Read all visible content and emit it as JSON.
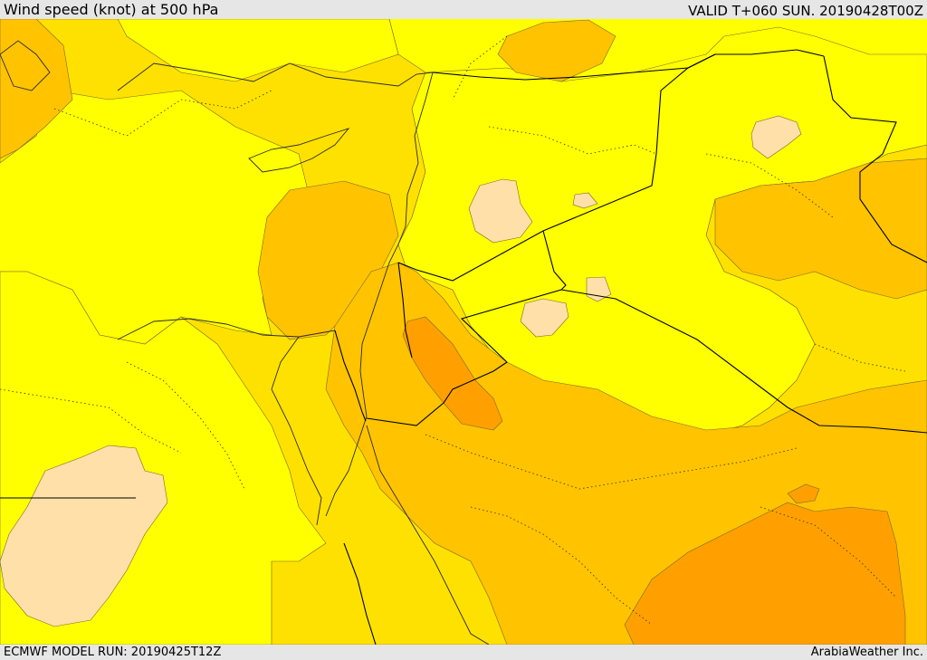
{
  "header": {
    "title": "Wind speed (knot) at 500 hPa",
    "valid": "VALID T+060 SUN. 20190428T00Z"
  },
  "footer": {
    "model_run": "ECMWF MODEL RUN: 20190425T12Z",
    "credit": "ArabiaWeather Inc."
  },
  "map": {
    "variable": "wind speed",
    "level": "500 hPa",
    "fill_colors": {
      "lowest": "#ffe0a8",
      "low": "#ffff00",
      "medium": "#ffe100",
      "medium_high": "#ffc300",
      "high": "#ffa000",
      "highest": "#ff8c00"
    },
    "line_colors": {
      "coast": "#2b2b2b",
      "border": "#000000",
      "admin": "#333333"
    }
  }
}
